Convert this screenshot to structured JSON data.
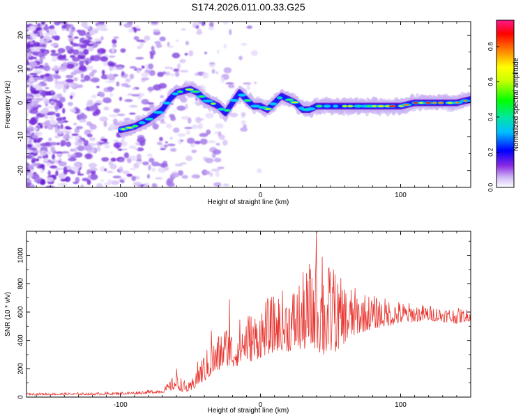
{
  "title": "S174.2026.011.00.33.G25",
  "chart_data": [
    {
      "type": "heatmap",
      "name": "spectrogram",
      "xlabel": "Height of straight line (km)",
      "ylabel": "Frequency (Hz)",
      "xlim": [
        -167,
        150
      ],
      "ylim": [
        -25,
        24
      ],
      "xticks": [
        -100,
        0,
        100
      ],
      "yticks": [
        -20,
        -10,
        0,
        10,
        20
      ],
      "colorbar": {
        "label": "Normalized spectral amplitude",
        "range": [
          0.0,
          0.95
        ],
        "ticks": [
          0.0,
          0.2,
          0.4,
          0.6,
          0.8
        ],
        "tick_labels": [
          "0.0",
          "0.2",
          "0.4",
          "0.6",
          "0.8"
        ]
      },
      "ridge": {
        "x": [
          -100,
          -90,
          -80,
          -70,
          -65,
          -60,
          -50,
          -45,
          -40,
          -35,
          -30,
          -25,
          -20,
          -15,
          -10,
          -5,
          0,
          5,
          10,
          15,
          20,
          25,
          30,
          35,
          40,
          50,
          60,
          70,
          80,
          90,
          100,
          110,
          120,
          130,
          140,
          150
        ],
        "y": [
          -8,
          -7,
          -5,
          -2,
          1,
          3,
          4,
          3,
          1,
          0,
          -1,
          -3,
          0,
          3,
          1,
          -1,
          -1,
          -2,
          0,
          2,
          1,
          0,
          -2,
          -2,
          -1,
          -1,
          -1,
          -1,
          -1,
          -1,
          -1,
          0,
          0,
          0,
          0,
          1
        ]
      },
      "noise_region_x": [
        -167,
        -60
      ]
    },
    {
      "type": "line",
      "name": "snr",
      "xlabel": "Height of straight line (km)",
      "ylabel": "SNR (10 * v/v)",
      "xlim": [
        -167,
        150
      ],
      "ylim": [
        0,
        1170
      ],
      "xticks": [
        -100,
        0,
        100
      ],
      "yticks": [
        0,
        200,
        400,
        600,
        800,
        1000
      ],
      "color": "#e8352f",
      "envelope_x": [
        -167,
        -120,
        -90,
        -80,
        -70,
        -65,
        -60,
        -55,
        -50,
        -45,
        -40,
        -35,
        -30,
        -25,
        -20,
        -15,
        -10,
        -5,
        0,
        5,
        10,
        15,
        20,
        25,
        30,
        35,
        40,
        45,
        50,
        55,
        60,
        70,
        80,
        90,
        100,
        110,
        120,
        130,
        140,
        150
      ],
      "envelope_lower": [
        15,
        15,
        20,
        25,
        30,
        45,
        55,
        35,
        35,
        80,
        110,
        150,
        180,
        230,
        200,
        230,
        260,
        250,
        280,
        300,
        320,
        330,
        320,
        340,
        330,
        350,
        340,
        280,
        300,
        330,
        380,
        450,
        480,
        500,
        520,
        530,
        540,
        530,
        520,
        540
      ],
      "envelope_upper": [
        30,
        32,
        40,
        50,
        60,
        110,
        180,
        120,
        100,
        250,
        320,
        380,
        450,
        520,
        480,
        560,
        620,
        600,
        660,
        700,
        720,
        760,
        780,
        800,
        880,
        920,
        1000,
        980,
        940,
        860,
        820,
        760,
        720,
        700,
        680,
        660,
        650,
        640,
        630,
        620
      ],
      "peaks": [
        {
          "x": 40,
          "y": 1170
        },
        {
          "x": 44,
          "y": 990
        },
        {
          "x": 35,
          "y": 940
        },
        {
          "x": 52,
          "y": 900
        },
        {
          "x": -22,
          "y": 690
        },
        {
          "x": -35,
          "y": 470
        },
        {
          "x": -60,
          "y": 200
        }
      ]
    }
  ]
}
